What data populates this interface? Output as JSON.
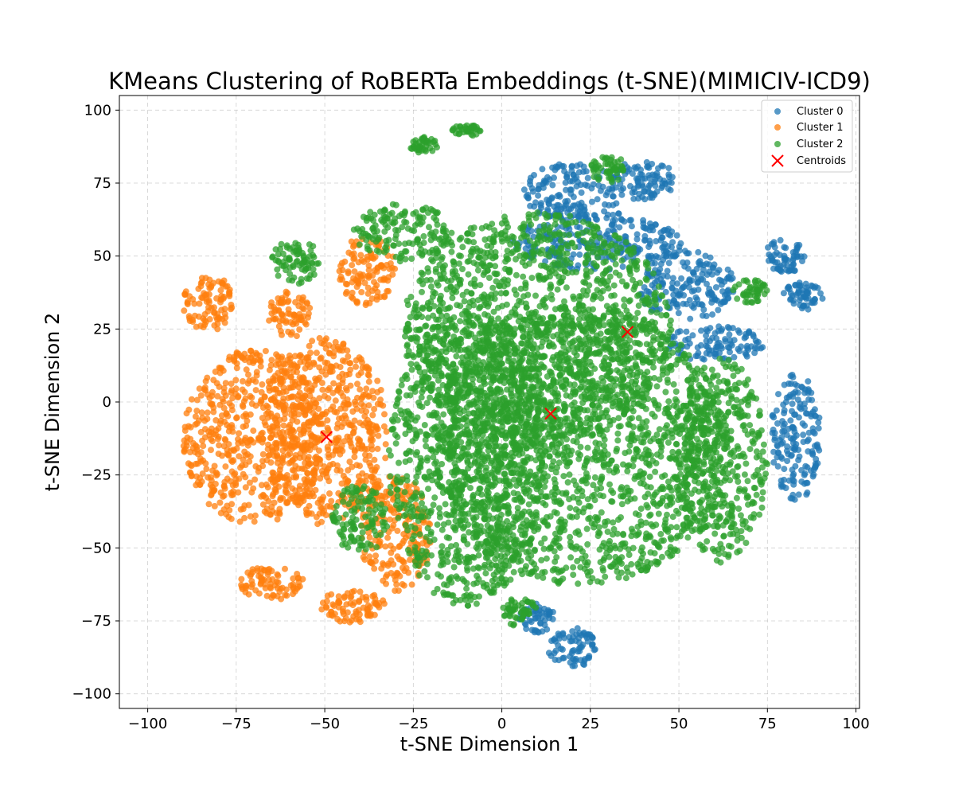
{
  "chart_data": {
    "type": "scatter",
    "title": "KMeans Clustering of RoBERTa Embeddings (t-SNE)(MIMICIV-ICD9)",
    "xlabel": "t-SNE Dimension 1",
    "ylabel": "t-SNE Dimension 2",
    "xlim": [
      -108,
      101
    ],
    "ylim": [
      -105,
      105
    ],
    "xticks": [
      -100,
      -75,
      -50,
      -25,
      0,
      25,
      50,
      75,
      100
    ],
    "yticks": [
      -100,
      -75,
      -50,
      -25,
      0,
      25,
      50,
      75,
      100
    ],
    "grid": true,
    "legend_position": "top-right",
    "series": [
      {
        "name": "Cluster 0",
        "color": "#1f77b4",
        "regions": [
          {
            "cx": 20,
            "cy": 72,
            "rx": 14,
            "ry": 10
          },
          {
            "cx": 40,
            "cy": 76,
            "rx": 9,
            "ry": 7
          },
          {
            "cx": 27,
            "cy": 55,
            "rx": 24,
            "ry": 10
          },
          {
            "cx": 52,
            "cy": 40,
            "rx": 14,
            "ry": 12
          },
          {
            "cx": 80,
            "cy": 50,
            "rx": 6,
            "ry": 6
          },
          {
            "cx": 85,
            "cy": 36,
            "rx": 6,
            "ry": 5
          },
          {
            "cx": 83,
            "cy": -12,
            "rx": 7,
            "ry": 22
          },
          {
            "cx": 20,
            "cy": -84,
            "rx": 7,
            "ry": 7
          },
          {
            "cx": 10,
            "cy": -74,
            "rx": 5,
            "ry": 5
          },
          {
            "cx": 60,
            "cy": 20,
            "rx": 14,
            "ry": 6
          }
        ]
      },
      {
        "name": "Cluster 1",
        "color": "#ff7f0e",
        "regions": [
          {
            "cx": -70,
            "cy": -12,
            "rx": 20,
            "ry": 30
          },
          {
            "cx": -50,
            "cy": -10,
            "rx": 18,
            "ry": 32
          },
          {
            "cx": -83,
            "cy": 34,
            "rx": 7,
            "ry": 10
          },
          {
            "cx": -65,
            "cy": -62,
            "rx": 9,
            "ry": 6
          },
          {
            "cx": -42,
            "cy": -70,
            "rx": 9,
            "ry": 6
          },
          {
            "cx": -38,
            "cy": 45,
            "rx": 8,
            "ry": 12
          },
          {
            "cx": -60,
            "cy": 30,
            "rx": 6,
            "ry": 8
          },
          {
            "cx": -30,
            "cy": -45,
            "rx": 10,
            "ry": 20
          }
        ]
      },
      {
        "name": "Cluster 2",
        "color": "#2ca02c",
        "regions": [
          {
            "cx": 22,
            "cy": -15,
            "rx": 42,
            "ry": 48
          },
          {
            "cx": 10,
            "cy": 25,
            "rx": 38,
            "ry": 40
          },
          {
            "cx": -10,
            "cy": -20,
            "rx": 22,
            "ry": 50
          },
          {
            "cx": 62,
            "cy": -20,
            "rx": 13,
            "ry": 35
          },
          {
            "cx": -28,
            "cy": 58,
            "rx": 14,
            "ry": 10
          },
          {
            "cx": -58,
            "cy": 48,
            "rx": 7,
            "ry": 8
          },
          {
            "cx": -22,
            "cy": 88,
            "rx": 4,
            "ry": 3
          },
          {
            "cx": -10,
            "cy": 93,
            "rx": 4,
            "ry": 2
          },
          {
            "cx": 30,
            "cy": 80,
            "rx": 5,
            "ry": 5
          },
          {
            "cx": 5,
            "cy": -72,
            "rx": 5,
            "ry": 5
          },
          {
            "cx": -40,
            "cy": -40,
            "rx": 8,
            "ry": 12
          },
          {
            "cx": 70,
            "cy": 38,
            "rx": 5,
            "ry": 4
          }
        ]
      }
    ],
    "centroids": {
      "name": "Centroids",
      "color": "#ff0000",
      "points": [
        {
          "x": 35.5,
          "y": 24
        },
        {
          "x": 13.8,
          "y": -4
        },
        {
          "x": -49.5,
          "y": -12
        }
      ]
    }
  }
}
